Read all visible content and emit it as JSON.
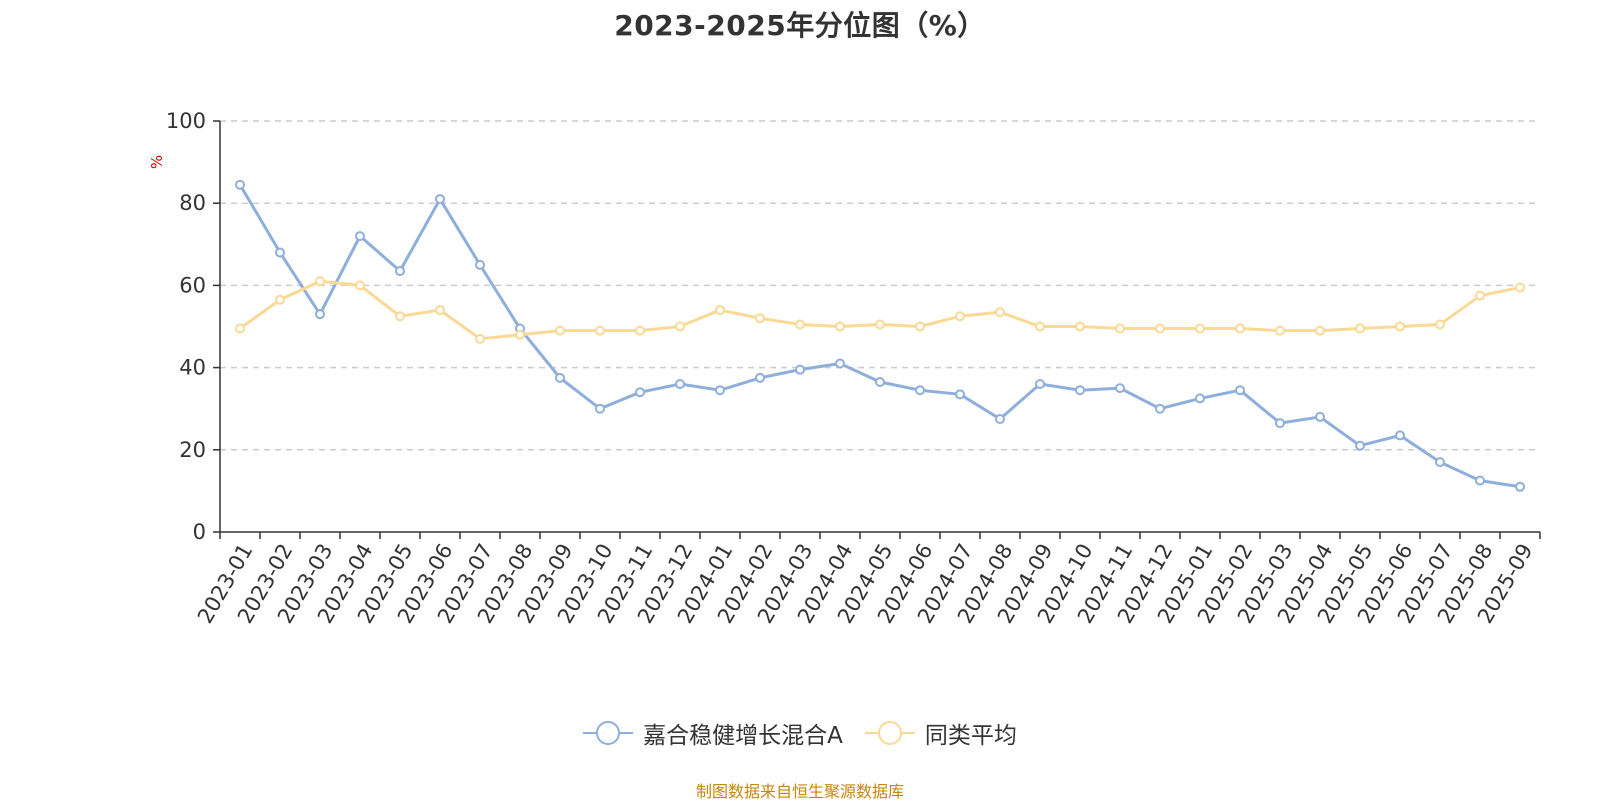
{
  "chart_data": {
    "type": "line",
    "title": "2023-2025年分位图（%）",
    "ylabel": "%",
    "xlabel": "",
    "ylim": [
      0,
      100
    ],
    "yticks": [
      0,
      20,
      40,
      60,
      80,
      100
    ],
    "grid": true,
    "legend_position": "bottom-center",
    "categories": [
      "2023-01",
      "2023-02",
      "2023-03",
      "2023-04",
      "2023-05",
      "2023-06",
      "2023-07",
      "2023-08",
      "2023-09",
      "2023-10",
      "2023-11",
      "2023-12",
      "2024-01",
      "2024-02",
      "2024-03",
      "2024-04",
      "2024-05",
      "2024-06",
      "2024-07",
      "2024-08",
      "2024-09",
      "2024-10",
      "2024-11",
      "2024-12",
      "2025-01",
      "2025-02",
      "2025-03",
      "2025-04",
      "2025-05",
      "2025-06",
      "2025-07",
      "2025-08",
      "2025-09"
    ],
    "series": [
      {
        "name": "嘉合稳健增长混合A",
        "color": "#8eaedb",
        "values": [
          84.5,
          68.0,
          53.0,
          72.0,
          63.5,
          81.0,
          65.0,
          49.5,
          37.5,
          30.0,
          34.0,
          36.0,
          34.5,
          37.5,
          39.5,
          41.0,
          36.5,
          34.5,
          33.5,
          27.5,
          36.0,
          34.5,
          35.0,
          30.0,
          32.5,
          34.5,
          26.5,
          28.0,
          21.0,
          23.5,
          17.0,
          12.5,
          11.0
        ]
      },
      {
        "name": "同类平均",
        "color": "#fad994",
        "values": [
          49.5,
          56.5,
          61.0,
          60.0,
          52.5,
          54.0,
          47.0,
          48.0,
          49.0,
          49.0,
          49.0,
          50.0,
          54.0,
          52.0,
          50.5,
          50.0,
          50.5,
          50.0,
          52.5,
          53.5,
          50.0,
          50.0,
          49.5,
          49.5,
          49.5,
          49.5,
          49.0,
          49.0,
          49.5,
          50.0,
          50.5,
          57.5,
          59.5
        ]
      }
    ]
  },
  "colors": {
    "axis": "#333333",
    "grid": "#cccccc",
    "y_unit": "#e60000",
    "source_note": "#c8860a"
  },
  "source_note": "制图数据来自恒生聚源数据库"
}
